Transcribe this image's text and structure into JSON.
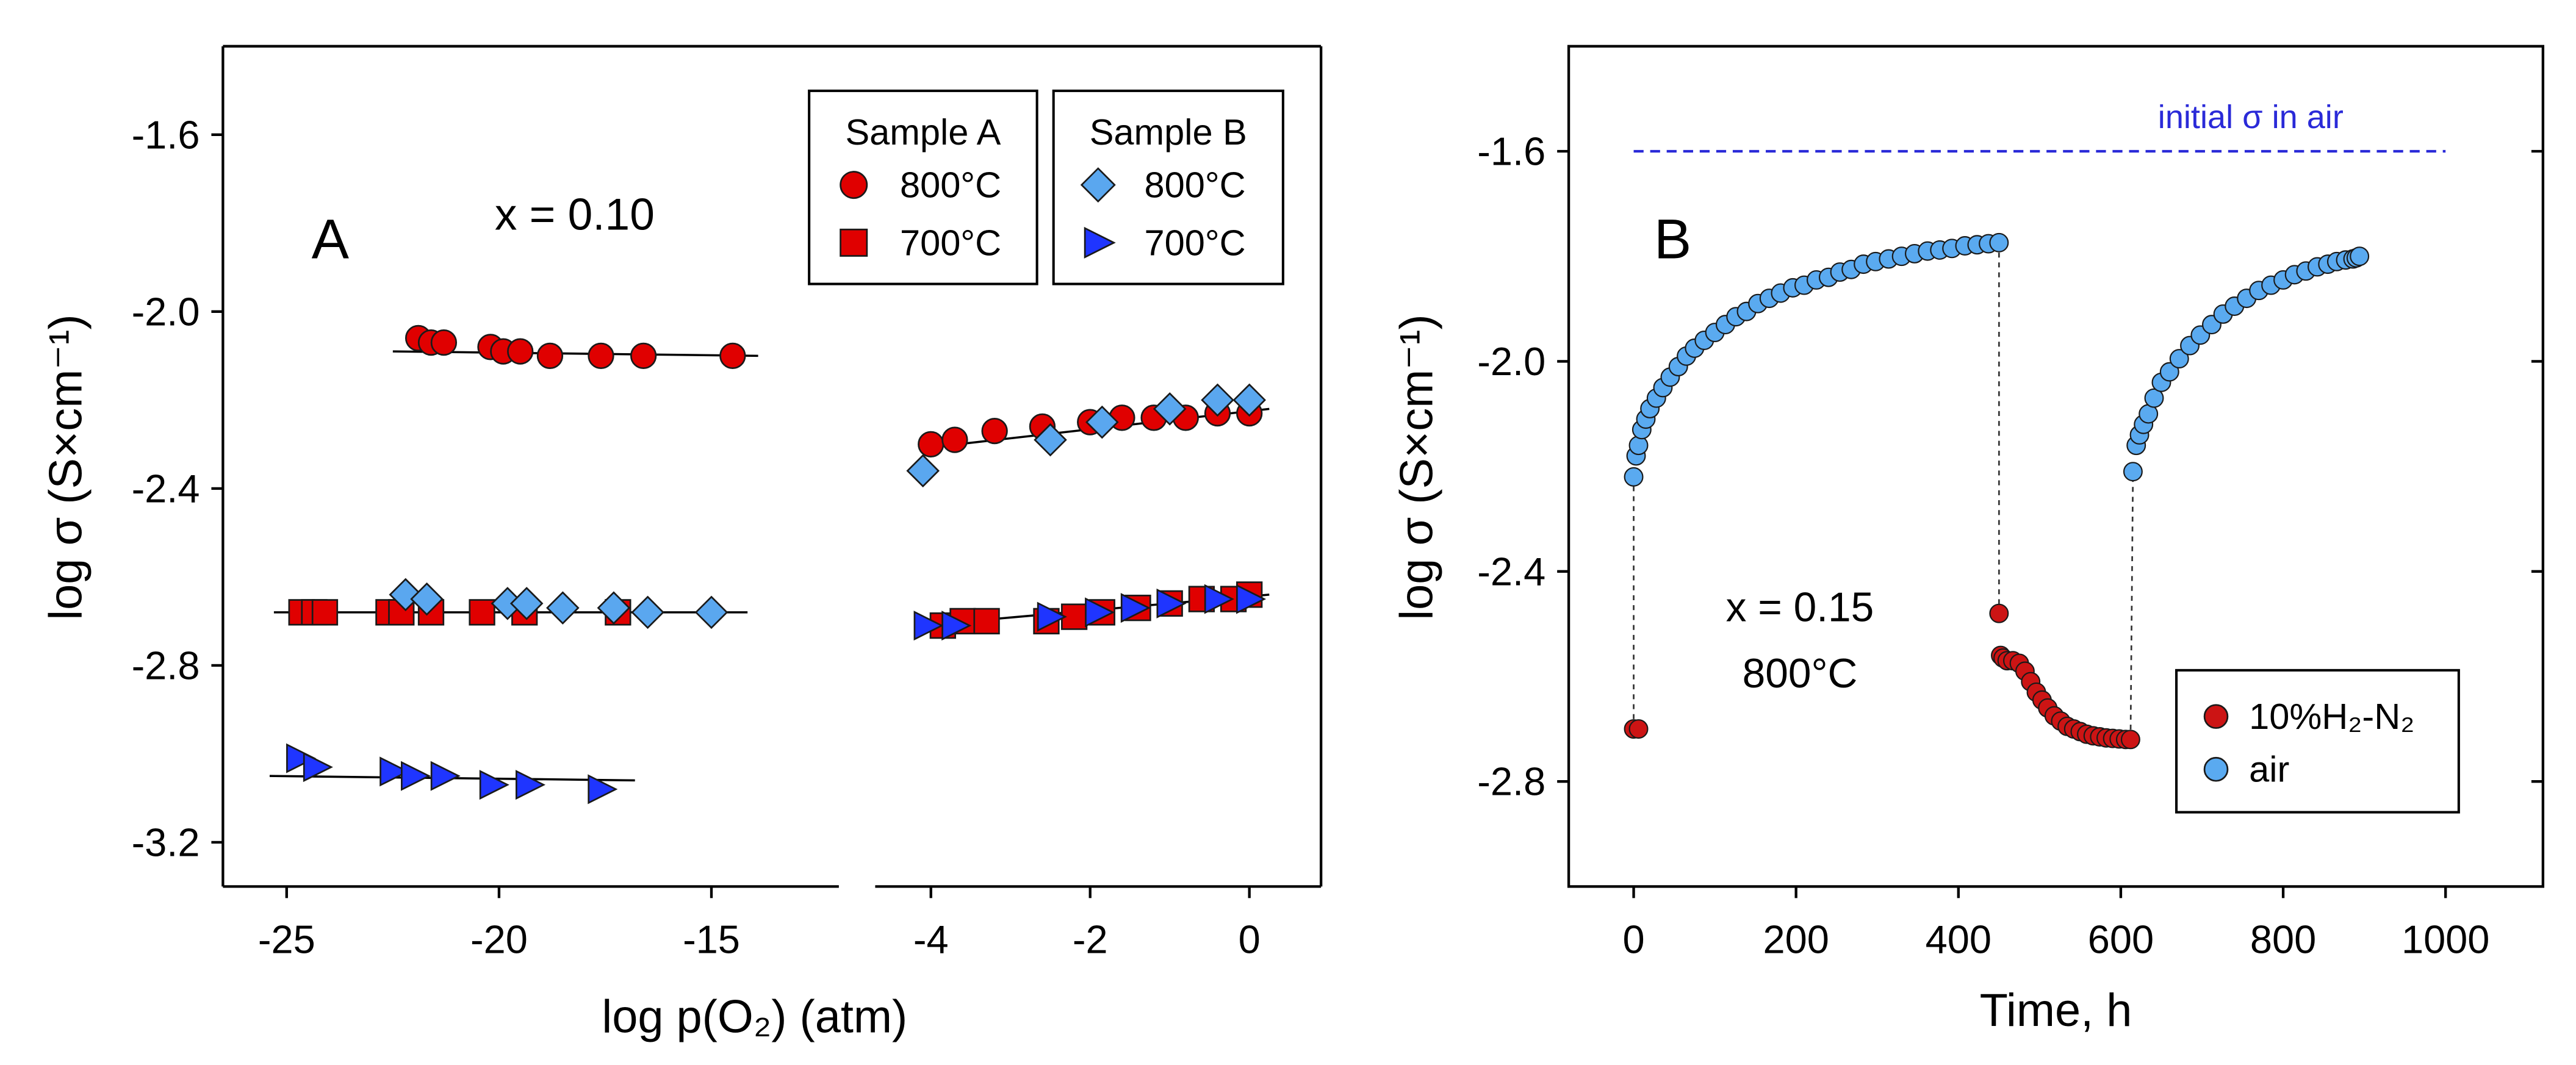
{
  "chart_data": [
    {
      "type": "scatter",
      "panel_label": "A",
      "annotation": "x = 0.10",
      "x_label": "log p(O₂) (atm)",
      "y_label": "log σ (S×cm⁻¹)",
      "ylim": [
        -3.3,
        -1.4
      ],
      "yticks": [
        -1.6,
        {
          "value": -2,
          "label": "-2.0"
        },
        -2.4,
        -2.8,
        -3.2
      ],
      "x_segments": [
        {
          "xlim": [
            -26.5,
            -12
          ],
          "xticks": [
            -25,
            -20,
            -15
          ]
        },
        {
          "xlim": [
            -4.7,
            0.9
          ],
          "xticks": [
            -4,
            -2,
            0
          ]
        }
      ],
      "groups": [
        {
          "title": "Sample A",
          "series": [
            {
              "name": "800°C",
              "marker": "circle",
              "color": "#e00000",
              "x": [
                -21.9,
                -21.6,
                -21.3,
                -20.2,
                -19.9,
                -19.5,
                -18.8,
                -17.6,
                -16.6,
                -14.5,
                -4.0,
                -3.7,
                -3.2,
                -2.6,
                -2.0,
                -1.6,
                -1.2,
                -0.8,
                -0.4,
                0
              ],
              "values": [
                -2.06,
                -2.07,
                -2.07,
                -2.08,
                -2.09,
                -2.09,
                -2.1,
                -2.1,
                -2.1,
                -2.1,
                -2.3,
                -2.29,
                -2.27,
                -2.26,
                -2.25,
                -2.24,
                -2.24,
                -2.24,
                -2.23,
                -2.23
              ]
            },
            {
              "name": "700°C",
              "marker": "square",
              "color": "#e00000",
              "x": [
                -24.65,
                -24.35,
                -24.1,
                -22.6,
                -22.3,
                -21.6,
                -20.4,
                -19.4,
                -17.2,
                -3.85,
                -3.6,
                -3.3,
                -2.55,
                -2.2,
                -1.85,
                -1.4,
                -1.0,
                -0.6,
                -0.2,
                0
              ],
              "values": [
                -2.68,
                -2.68,
                -2.68,
                -2.68,
                -2.68,
                -2.68,
                -2.68,
                -2.68,
                -2.68,
                -2.71,
                -2.7,
                -2.7,
                -2.7,
                -2.69,
                -2.68,
                -2.67,
                -2.66,
                -2.65,
                -2.65,
                -2.64
              ]
            }
          ]
        },
        {
          "title": "Sample B",
          "series": [
            {
              "name": "800°C",
              "marker": "diamond",
              "color": "#5aa7ef",
              "x": [
                -22.2,
                -21.7,
                -19.8,
                -19.35,
                -18.5,
                -17.3,
                -16.5,
                -15,
                -4.1,
                -2.5,
                -1.85,
                -1.0,
                -0.4,
                0
              ],
              "values": [
                -2.64,
                -2.65,
                -2.66,
                -2.66,
                -2.67,
                -2.67,
                -2.68,
                -2.68,
                -2.36,
                -2.29,
                -2.25,
                -2.22,
                -2.2,
                -2.2
              ]
            },
            {
              "name": "700°C",
              "marker": "triangle",
              "color": "#1f35ff",
              "x": [
                -24.7,
                -24.3,
                -22.5,
                -22.0,
                -21.3,
                -20.15,
                -19.3,
                -17.6,
                -4.05,
                -3.7,
                -2.5,
                -1.9,
                -1.45,
                -1.0,
                -0.4,
                0
              ],
              "values": [
                -3.01,
                -3.03,
                -3.04,
                -3.05,
                -3.05,
                -3.07,
                -3.07,
                -3.08,
                -2.71,
                -2.71,
                -2.69,
                -2.68,
                -2.67,
                -2.66,
                -2.65,
                -2.65
              ]
            }
          ]
        }
      ],
      "fit_lines": [
        {
          "x": [
            -22.5,
            -13.9
          ],
          "values": [
            -2.09,
            -2.1
          ]
        },
        {
          "x": [
            -25.3,
            -14.15
          ],
          "values": [
            -2.68,
            -2.68
          ]
        },
        {
          "x": [
            -25.4,
            -16.8
          ],
          "values": [
            -3.05,
            -3.06
          ]
        },
        {
          "x": [
            -4.15,
            0.25
          ],
          "values": [
            -2.31,
            -2.22
          ]
        },
        {
          "x": [
            -4.15,
            0.25
          ],
          "values": [
            -2.71,
            -2.64
          ]
        }
      ]
    },
    {
      "type": "scatter",
      "panel_label": "B",
      "annotation": "x = 0.15",
      "annotation_2": "800°C",
      "x_label": "Time, h",
      "y_label": "log σ (S×cm⁻¹)",
      "xlim": [
        -80,
        1120
      ],
      "xticks": [
        0,
        200,
        400,
        600,
        800,
        1000
      ],
      "ylim": [
        -3.0,
        -1.4
      ],
      "yticks": [
        -1.6,
        {
          "value": -2,
          "label": "-2.0"
        },
        -2.4,
        -2.8
      ],
      "reference_line": {
        "value": -1.6,
        "x": [
          0,
          1000
        ],
        "label": "initial σ in air",
        "color": "#2a2ad8"
      },
      "series": [
        {
          "name": "10%H₂-N₂",
          "color": "#cc1414",
          "x": [
            0,
            6,
            450,
            452,
            455,
            460,
            467,
            475,
            482,
            489,
            496,
            503,
            510,
            518,
            526,
            534,
            542,
            550,
            558,
            566,
            574,
            582,
            590,
            598,
            606,
            612
          ],
          "values": [
            -2.7,
            -2.7,
            -2.48,
            -2.56,
            -2.565,
            -2.57,
            -2.57,
            -2.575,
            -2.59,
            -2.61,
            -2.63,
            -2.645,
            -2.66,
            -2.675,
            -2.685,
            -2.695,
            -2.7,
            -2.705,
            -2.71,
            -2.713,
            -2.715,
            -2.717,
            -2.718,
            -2.719,
            -2.72,
            -2.72
          ]
        },
        {
          "name": "air",
          "color": "#5aaaf0",
          "x": [
            0,
            3,
            6,
            10,
            15,
            20,
            28,
            36,
            45,
            55,
            65,
            75,
            87,
            100,
            113,
            126,
            139,
            153,
            167,
            181,
            196,
            210,
            225,
            240,
            254,
            268,
            283,
            298,
            314,
            330,
            346,
            362,
            377,
            392,
            408,
            423,
            437,
            450,
            null,
            615,
            619,
            623,
            628,
            634,
            641,
            650,
            660,
            672,
            685,
            698,
            712,
            726,
            740,
            755,
            770,
            785,
            800,
            814,
            828,
            842,
            855,
            866,
            877,
            886,
            890,
            894
          ],
          "values": [
            -2.22,
            -2.18,
            -2.16,
            -2.13,
            -2.11,
            -2.09,
            -2.07,
            -2.05,
            -2.03,
            -2.01,
            -1.99,
            -1.975,
            -1.96,
            -1.945,
            -1.93,
            -1.915,
            -1.905,
            -1.89,
            -1.88,
            -1.87,
            -1.86,
            -1.855,
            -1.845,
            -1.84,
            -1.83,
            -1.825,
            -1.815,
            -1.81,
            -1.805,
            -1.8,
            -1.795,
            -1.79,
            -1.788,
            -1.785,
            -1.78,
            -1.778,
            -1.776,
            -1.774,
            null,
            -2.21,
            -2.16,
            -2.14,
            -2.12,
            -2.1,
            -2.07,
            -2.04,
            -2.02,
            -1.995,
            -1.97,
            -1.95,
            -1.93,
            -1.91,
            -1.895,
            -1.88,
            -1.865,
            -1.855,
            -1.845,
            -1.835,
            -1.828,
            -1.82,
            -1.815,
            -1.81,
            -1.807,
            -1.805,
            -1.803,
            -1.8
          ]
        }
      ]
    }
  ]
}
